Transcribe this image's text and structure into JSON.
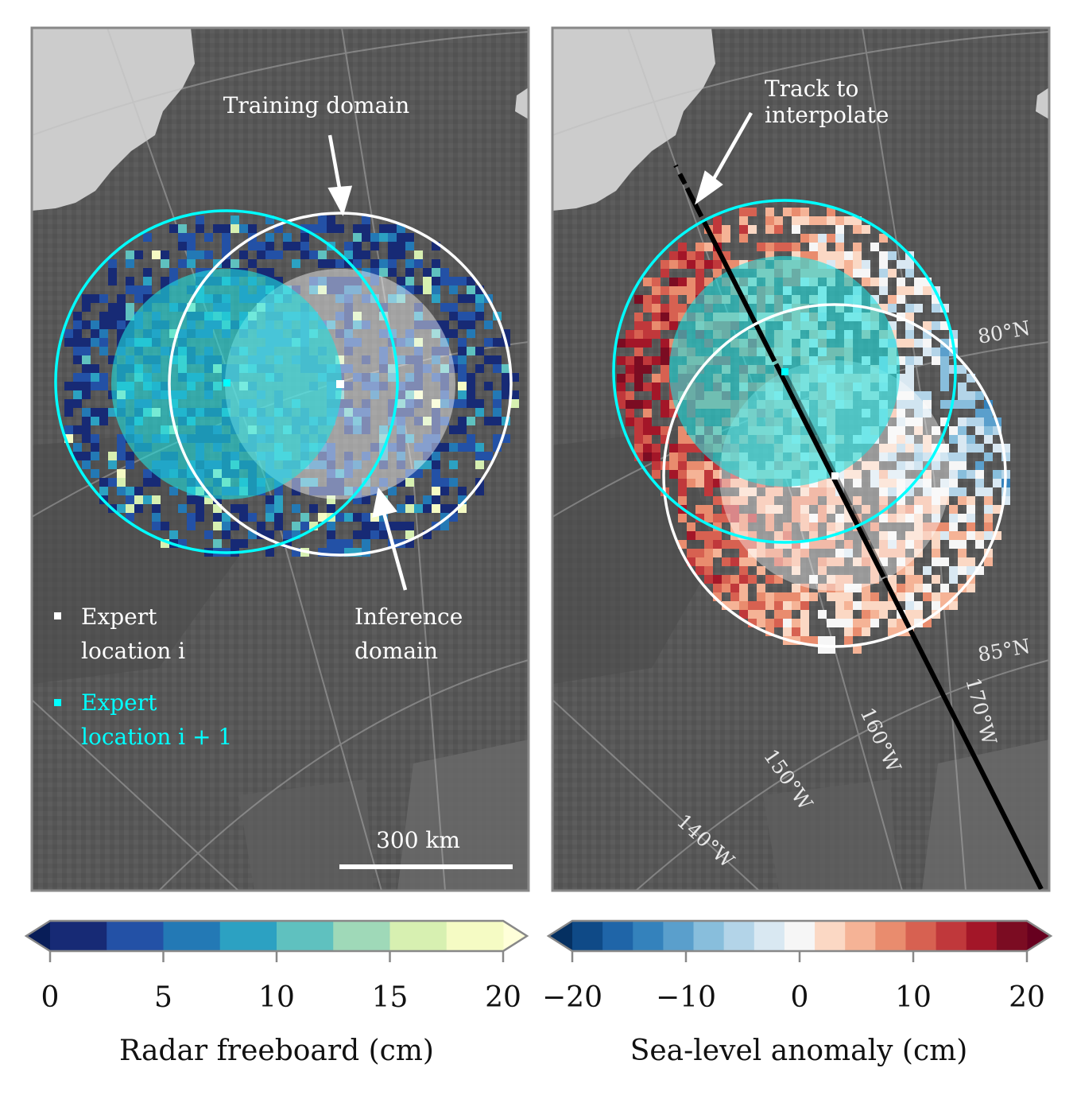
{
  "left_panel": {
    "annotations": {
      "training_domain": "Training domain",
      "inference_domain_line1": "Inference",
      "inference_domain_line2": "domain"
    },
    "legend": {
      "item_i_line1": "Expert",
      "item_i_line2": "location i",
      "item_i1_line1": "Expert",
      "item_i1_line2": "location i + 1",
      "item_i_color": "#ffffff",
      "item_i1_color": "#00ffff"
    },
    "scalebar_label": "300 km"
  },
  "right_panel": {
    "annotations": {
      "track_line1": "Track to",
      "track_line2": "interpolate"
    },
    "latitude_labels": [
      "80°N",
      "85°N"
    ],
    "longitude_labels": [
      "140°W",
      "150°W",
      "160°W",
      "170°W"
    ]
  },
  "colorbars": {
    "freeboard": {
      "title": "Radar freeboard (cm)",
      "ticks": [
        "0",
        "5",
        "10",
        "15",
        "20"
      ],
      "tick_values": [
        0,
        5,
        10,
        15,
        20
      ],
      "range": [
        0,
        20
      ],
      "colors": [
        "#172a75",
        "#2351a6",
        "#2379b5",
        "#2ca1c2",
        "#5fc1bf",
        "#9fd9b8",
        "#d7f0b1",
        "#f5fbc4"
      ],
      "under_color": "#081d58",
      "over_color": "#ffffd9"
    },
    "sla": {
      "title": "Sea-level anomaly (cm)",
      "ticks": [
        "−20",
        "−10",
        "0",
        "10",
        "20"
      ],
      "tick_values": [
        -20,
        -10,
        0,
        10,
        20
      ],
      "range": [
        -20,
        20
      ],
      "colors": [
        "#0f4a87",
        "#1f65a8",
        "#3482bc",
        "#5a9fcc",
        "#88bedc",
        "#b3d4e8",
        "#d9e8f2",
        "#f6f6f6",
        "#fbd8c4",
        "#f5b396",
        "#e98c6e",
        "#d76151",
        "#c0383b",
        "#a31628",
        "#7b0c22"
      ],
      "under_color": "#053061",
      "over_color": "#67001f"
    }
  },
  "colors": {
    "ocean": "#585858",
    "land": "#cccccc",
    "cyan": "#00ffff",
    "white": "#ffffff",
    "track": "#000000"
  }
}
